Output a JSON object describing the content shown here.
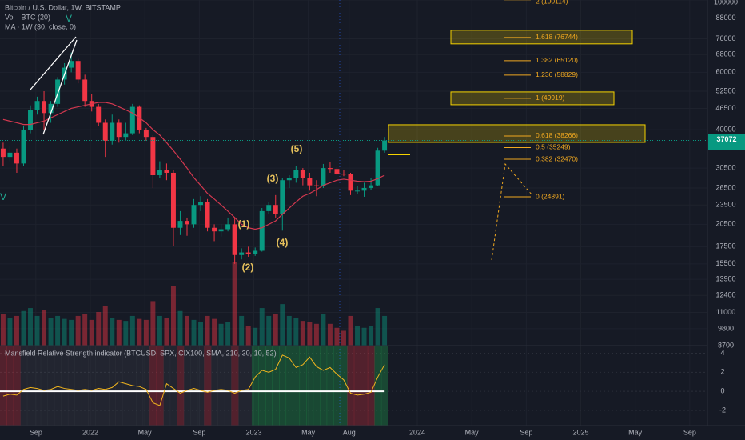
{
  "chart_data": {
    "type": "candlestick",
    "title": "Bitcoin / U.S. Dollar, 1W, BITSTAMP",
    "log_scale": true,
    "grid": true,
    "up_color": "#089981",
    "down_color": "#f23645",
    "xlim": [
      5.37,
      57.3
    ],
    "xticks": [
      {
        "value": 8,
        "label": "Sep"
      },
      {
        "value": 12,
        "label": "2022"
      },
      {
        "value": 16,
        "label": "May"
      },
      {
        "value": 20,
        "label": "Sep"
      },
      {
        "value": 24,
        "label": "2023"
      },
      {
        "value": 28,
        "label": "May"
      },
      {
        "value": 31,
        "label": "Aug"
      },
      {
        "value": 36,
        "label": "2024"
      },
      {
        "value": 40,
        "label": "May"
      },
      {
        "value": 44,
        "label": "Sep"
      },
      {
        "value": 48,
        "label": "2025"
      },
      {
        "value": 52,
        "label": "May"
      },
      {
        "value": 56,
        "label": "Sep"
      }
    ],
    "ylim": [
      8700,
      100000
    ],
    "yticks": [
      100000,
      88000,
      76000,
      68000,
      60000,
      52500,
      46500,
      40000,
      30500,
      26500,
      23500,
      20500,
      17500,
      15500,
      13900,
      12400,
      11000,
      9800,
      8700
    ],
    "x": [
      5.6,
      6.1,
      6.6,
      7.1,
      7.6,
      8.1,
      8.6,
      9.1,
      9.6,
      10.1,
      10.6,
      11.1,
      11.6,
      12.1,
      12.6,
      13.1,
      13.6,
      14.1,
      14.6,
      15.1,
      15.6,
      16.1,
      16.6,
      17.1,
      17.6,
      18.1,
      18.6,
      19.1,
      19.6,
      20.1,
      20.6,
      21.1,
      21.6,
      22.1,
      22.6,
      23.1,
      23.6,
      24.1,
      24.6,
      25.1,
      25.6,
      26.1,
      26.6,
      27.1,
      27.6,
      28.1,
      28.6,
      29.1,
      29.6,
      30.1,
      30.6,
      31.1,
      31.6,
      32.1,
      32.6,
      33.1,
      33.6
    ],
    "open": [
      35000,
      33000,
      34000,
      31500,
      40000,
      46000,
      49000,
      45000,
      48000,
      57000,
      62000,
      65000,
      57000,
      49000,
      47000,
      42000,
      37000,
      42000,
      38000,
      39000,
      47000,
      40000,
      38000,
      29000,
      30000,
      29500,
      20000,
      21000,
      20500,
      23500,
      24000,
      20000,
      19500,
      19800,
      20500,
      16500,
      16800,
      16600,
      17000,
      22500,
      23500,
      22000,
      28000,
      28500,
      30000,
      28500,
      27000,
      26800,
      30500,
      30300,
      29300,
      29200,
      26000,
      26000,
      26500,
      27000,
      34500
    ],
    "high": [
      36500,
      35500,
      35000,
      41000,
      47500,
      50500,
      52500,
      49000,
      58000,
      64000,
      69000,
      66000,
      59000,
      51500,
      48000,
      43000,
      44500,
      43000,
      42000,
      48000,
      47500,
      40500,
      38500,
      32000,
      31500,
      30000,
      22500,
      21500,
      24500,
      25000,
      24500,
      20500,
      20500,
      21500,
      21500,
      17300,
      17500,
      17400,
      23000,
      24000,
      25200,
      28500,
      29000,
      31000,
      30500,
      29500,
      28000,
      31400,
      31800,
      30700,
      30000,
      29500,
      26800,
      27500,
      28500,
      35200,
      38000
    ],
    "low": [
      31000,
      32000,
      29500,
      31000,
      39000,
      44500,
      40000,
      42000,
      47000,
      55000,
      60000,
      55500,
      47000,
      45500,
      41000,
      33000,
      36000,
      36500,
      37000,
      38500,
      39000,
      37000,
      26500,
      28500,
      28000,
      17600,
      19000,
      18900,
      20000,
      22500,
      19500,
      18200,
      18800,
      19500,
      15500,
      16000,
      16300,
      16400,
      16900,
      22000,
      21500,
      19600,
      26500,
      27500,
      27000,
      26000,
      25000,
      26500,
      29500,
      29000,
      28800,
      25200,
      25400,
      24900,
      26100,
      26800,
      34000
    ],
    "close": [
      33000,
      34000,
      31500,
      40000,
      46000,
      49000,
      45000,
      48000,
      57000,
      62000,
      65000,
      57000,
      49000,
      47000,
      42000,
      37000,
      42000,
      38000,
      39000,
      47000,
      40000,
      38000,
      29000,
      30000,
      29500,
      20000,
      21000,
      20500,
      23500,
      24000,
      20000,
      19500,
      19800,
      20500,
      16500,
      16800,
      16600,
      17000,
      22500,
      23500,
      22000,
      28000,
      28500,
      30000,
      28500,
      27000,
      26800,
      30500,
      30300,
      29300,
      29200,
      26000,
      26000,
      26500,
      27000,
      34500,
      37072
    ],
    "volume": {
      "name": "Vol · BTC (20)",
      "values": [
        32000,
        28000,
        30000,
        35000,
        38000,
        30000,
        36000,
        28000,
        30000,
        27000,
        26000,
        30000,
        32000,
        26000,
        34000,
        40000,
        28000,
        26000,
        25000,
        30000,
        27000,
        26000,
        45000,
        30000,
        28000,
        60000,
        35000,
        30000,
        26000,
        24000,
        30000,
        27000,
        22000,
        24000,
        85000,
        30000,
        20000,
        18000,
        38000,
        30000,
        32000,
        42000,
        30000,
        28000,
        25000,
        24000,
        22000,
        32000,
        22000,
        18000,
        15000,
        30000,
        20000,
        18000,
        20000,
        38000,
        30000
      ]
    },
    "series": [
      {
        "name": "MA · 1W (30, close, 0)",
        "color": "#d2384f",
        "values": [
          43000,
          42500,
          42000,
          41500,
          41500,
          42000,
          42500,
          43500,
          44500,
          45500,
          46500,
          47000,
          47500,
          48000,
          48500,
          48500,
          48000,
          47000,
          46000,
          45000,
          43500,
          42000,
          40000,
          38500,
          36500,
          34500,
          32500,
          30500,
          28500,
          27000,
          25500,
          24500,
          23500,
          22500,
          21500,
          20500,
          20000,
          19800,
          20000,
          20500,
          21000,
          22000,
          23000,
          24000,
          25000,
          25500,
          26200,
          27000,
          27500,
          28000,
          28200,
          28000,
          27800,
          27700,
          27800,
          28300,
          29000
        ]
      }
    ],
    "indicator": {
      "type": "line",
      "title": "Mansfield Relative Strength indicator (BTCUSD, SPX, CIX100, SMA, 210, 30, 10, 52)",
      "color": "#f0b41e",
      "ylim": [
        -3.6,
        4.8
      ],
      "yticks": [
        4,
        2,
        0,
        -2
      ],
      "values": [
        -0.5,
        -0.3,
        -0.4,
        0.2,
        0.4,
        0.3,
        0.1,
        0.2,
        0.5,
        0.3,
        0.2,
        0.1,
        0.2,
        0.1,
        0.3,
        0.2,
        0.4,
        1.0,
        0.8,
        0.6,
        0.5,
        0.2,
        -1.2,
        -1.5,
        0.8,
        0.3,
        -0.2,
        0.1,
        0.3,
        0.1,
        -0.1,
        0.1,
        0.2,
        0.1,
        -0.2,
        0.1,
        0.2,
        1.5,
        2.2,
        2.0,
        2.3,
        3.8,
        3.5,
        2.5,
        2.8,
        3.6,
        2.6,
        2.2,
        2.5,
        1.8,
        1.2,
        -0.2,
        -0.4,
        -0.3,
        -0.1,
        1.5,
        2.8
      ]
    },
    "fib_levels": [
      {
        "value": 100114,
        "label": "2 (100114)"
      },
      {
        "value": 76744,
        "label": "1.618 (76744)"
      },
      {
        "value": 65120,
        "label": "1.382 (65120)"
      },
      {
        "value": 58829,
        "label": "1.236 (58829)"
      },
      {
        "value": 49919,
        "label": "1 (49919)"
      },
      {
        "value": 38266,
        "label": "0.618 (38266)"
      },
      {
        "value": 35249,
        "label": "0.5 (35249)"
      },
      {
        "value": 32470,
        "label": "0.382 (32470)"
      },
      {
        "value": 24891,
        "label": "0 (24891)"
      }
    ],
    "waves": [
      "(1)",
      "(2)",
      "(3)",
      "(4)",
      "(5)"
    ],
    "wave_v": "V"
  }
}
